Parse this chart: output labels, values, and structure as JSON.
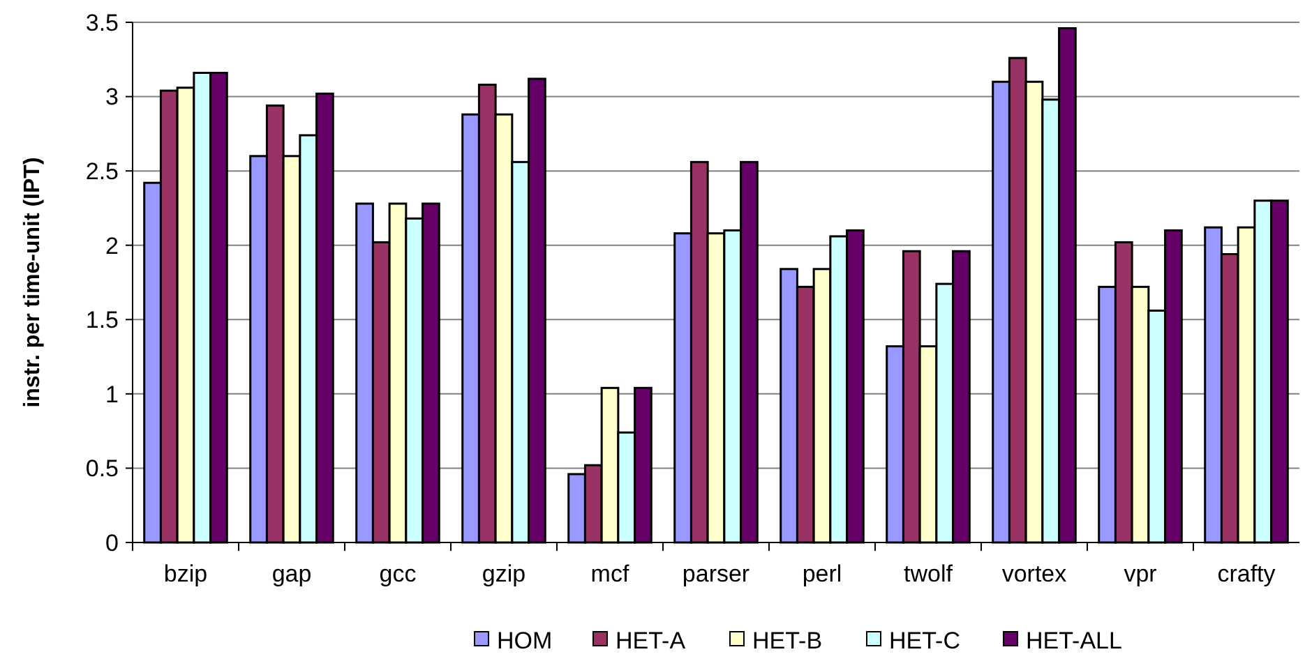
{
  "chart_data": {
    "type": "bar",
    "ylabel": "instr. per time-unit (IPT)",
    "categories": [
      "bzip",
      "gap",
      "gcc",
      "gzip",
      "mcf",
      "parser",
      "perl",
      "twolf",
      "vortex",
      "vpr",
      "crafty"
    ],
    "series": [
      {
        "name": "HOM",
        "color": "#9999ff",
        "values": [
          2.42,
          2.6,
          2.28,
          2.88,
          0.46,
          2.08,
          1.84,
          1.32,
          3.1,
          1.72,
          2.12
        ]
      },
      {
        "name": "HET-A",
        "color": "#993366",
        "values": [
          3.04,
          2.94,
          2.02,
          3.08,
          0.52,
          2.56,
          1.72,
          1.96,
          3.26,
          2.02,
          1.94
        ]
      },
      {
        "name": "HET-B",
        "color": "#ffffcc",
        "values": [
          3.06,
          2.6,
          2.28,
          2.88,
          1.04,
          2.08,
          1.84,
          1.32,
          3.1,
          1.72,
          2.12
        ]
      },
      {
        "name": "HET-C",
        "color": "#ccffff",
        "values": [
          3.16,
          2.74,
          2.18,
          2.56,
          0.74,
          2.1,
          2.06,
          1.74,
          2.98,
          1.56,
          2.3
        ]
      },
      {
        "name": "HET-ALL",
        "color": "#660066",
        "values": [
          3.16,
          3.02,
          2.28,
          3.12,
          1.04,
          2.56,
          2.1,
          1.96,
          3.46,
          2.1,
          2.3
        ]
      }
    ],
    "ylim": [
      0,
      3.5
    ],
    "yticks": [
      0,
      0.5,
      1,
      1.5,
      2,
      2.5,
      3,
      3.5
    ],
    "grid": "y",
    "legend": "bottom"
  }
}
